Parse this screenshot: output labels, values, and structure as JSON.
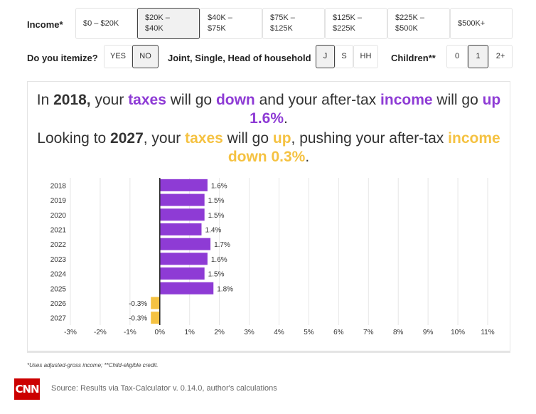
{
  "filters": {
    "income": {
      "label": "Income*",
      "options": [
        "$0 – $20K",
        "$20K –\n$40K",
        "$40K –\n$75K",
        "$75K –\n$125K",
        "$125K –\n$225K",
        "$225K –\n$500K",
        "$500K+"
      ],
      "selected": 1
    },
    "itemize": {
      "label": "Do you itemize?",
      "options": [
        "YES",
        "NO"
      ],
      "selected": 1
    },
    "filing": {
      "label": "Joint, Single, Head of household",
      "options": [
        "J",
        "S",
        "HH"
      ],
      "selected": 0
    },
    "children": {
      "label": "Children**",
      "options": [
        "0",
        "1",
        "2+"
      ],
      "selected": 1
    }
  },
  "headline": {
    "l1": {
      "in": "In ",
      "year": "2018,",
      "your1": " your ",
      "taxes": "taxes",
      "will1": " will go ",
      "down": "down",
      "and": " and your after-tax ",
      "income": "income",
      "will2": " will go ",
      "up": "up"
    },
    "l2": {
      "pct": "1.6%",
      "dot": "."
    },
    "l3": {
      "looking": "Looking to ",
      "year": "2027",
      "your": ", your ",
      "taxes": "taxes",
      "will": " will go ",
      "up": "up",
      "pushing": ", pushing your after-tax ",
      "income": "income"
    },
    "l4": {
      "down": "down 0.3%",
      "dot": "."
    }
  },
  "colors": {
    "positive": "#8e3bd5",
    "negative": "#f5c242"
  },
  "chart_data": {
    "type": "bar",
    "orientation": "horizontal",
    "categories": [
      "2018",
      "2019",
      "2020",
      "2021",
      "2022",
      "2023",
      "2024",
      "2025",
      "2026",
      "2027"
    ],
    "values": [
      1.6,
      1.5,
      1.5,
      1.4,
      1.7,
      1.6,
      1.5,
      1.8,
      -0.3,
      -0.3
    ],
    "value_labels": [
      "1.6%",
      "1.5%",
      "1.5%",
      "1.4%",
      "1.7%",
      "1.6%",
      "1.5%",
      "1.8%",
      "-0.3%",
      "-0.3%"
    ],
    "xlim": [
      -3,
      11
    ],
    "xticks": [
      -3,
      -2,
      -1,
      0,
      1,
      2,
      3,
      4,
      5,
      6,
      7,
      8,
      9,
      10,
      11
    ],
    "xtick_labels": [
      "-3%",
      "-2%",
      "-1%",
      "0%",
      "1%",
      "2%",
      "3%",
      "4%",
      "5%",
      "6%",
      "7%",
      "8%",
      "9%",
      "10%",
      "11%"
    ],
    "grid": true
  },
  "footnote": "*Uses adjusted-gross income; **Child-eligible credit.",
  "logo_text": "CNN",
  "source": "Source: Results via Tax-Calculator v. 0.14.0, author's calculations"
}
